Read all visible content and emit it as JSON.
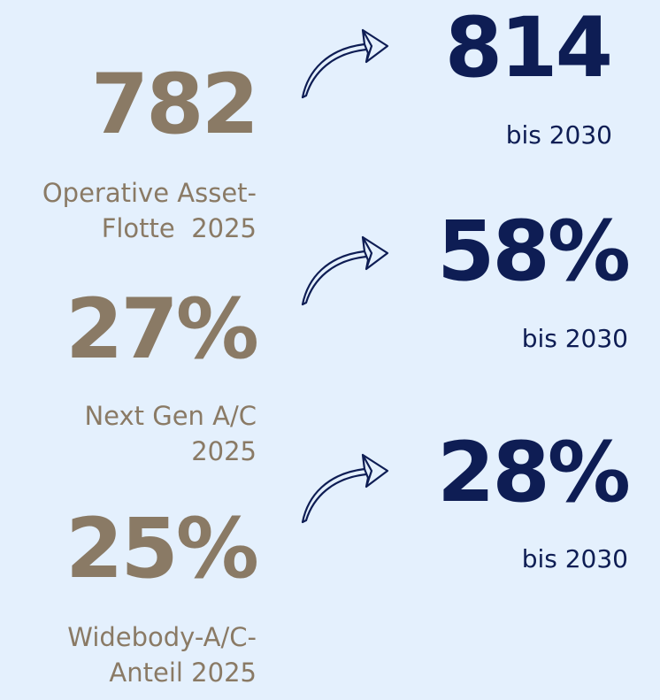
{
  "rows": [
    {
      "current": "782",
      "current_label": [
        "Operative Asset-",
        "Flotte  2025"
      ],
      "target": "814",
      "target_label": "bis 2030"
    },
    {
      "current": "27%",
      "current_label": [
        "Next Gen A/C",
        "2025"
      ],
      "target": "58%",
      "target_label": "bis 2030"
    },
    {
      "current": "25%",
      "current_label": [
        "Widebody-A/C-",
        "Anteil 2025"
      ],
      "target": "28%",
      "target_label": "bis 2030"
    }
  ]
}
